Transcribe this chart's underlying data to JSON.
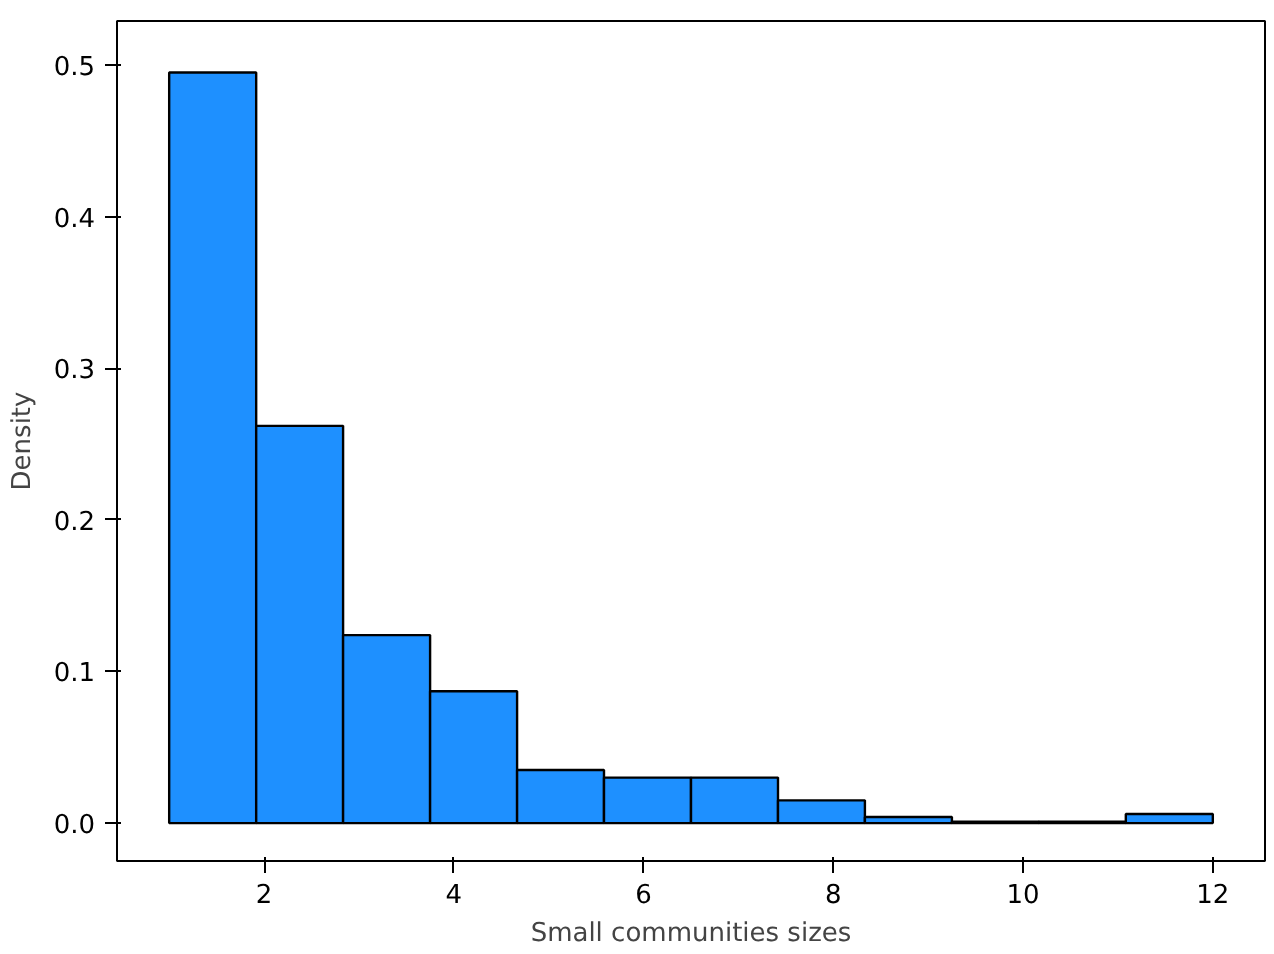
{
  "chart_data": {
    "type": "histogram",
    "xlabel": "Small communities sizes",
    "ylabel": "Density",
    "bins": [
      1,
      1.917,
      2.833,
      3.75,
      4.667,
      5.583,
      6.5,
      7.417,
      8.333,
      9.25,
      10.167,
      11.083,
      12
    ],
    "values": [
      0.495,
      0.262,
      0.124,
      0.087,
      0.035,
      0.03,
      0.03,
      0.015,
      0.004,
      0.001,
      0.001,
      0.006
    ],
    "color": "#1e90ff",
    "xlim": [
      0.45,
      12.55
    ],
    "ylim": [
      -0.025,
      0.529
    ],
    "xticks": [
      2,
      4,
      6,
      8,
      10,
      12
    ],
    "yticks": [
      {
        "value": 0,
        "label": "0.0"
      },
      0.1,
      0.2,
      0.3,
      0.4,
      0.5
    ],
    "grid": false
  }
}
